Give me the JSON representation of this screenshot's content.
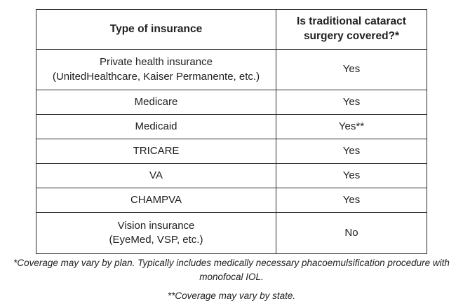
{
  "table": {
    "headers": {
      "type_col": "Type of insurance",
      "covered_col": "Is traditional cataract\nsurgery covered?*"
    },
    "rows": [
      {
        "type": "Private health insurance\n(UnitedHealthcare, Kaiser Permanente, etc.)",
        "covered": "Yes"
      },
      {
        "type": "Medicare",
        "covered": "Yes"
      },
      {
        "type": "Medicaid",
        "covered": "Yes**"
      },
      {
        "type": "TRICARE",
        "covered": "Yes"
      },
      {
        "type": "VA",
        "covered": "Yes"
      },
      {
        "type": "CHAMPVA",
        "covered": "Yes"
      },
      {
        "type": "Vision insurance\n(EyeMed, VSP, etc.)",
        "covered": "No"
      }
    ]
  },
  "footnotes": {
    "plan_note": "*Coverage may vary by plan. Typically includes medically necessary phacoemulsification procedure with monofocal IOL.",
    "state_note": "**Coverage may vary by state."
  },
  "colors": {
    "border": "#2b2b2b",
    "text": "#202124",
    "background": "#ffffff"
  }
}
